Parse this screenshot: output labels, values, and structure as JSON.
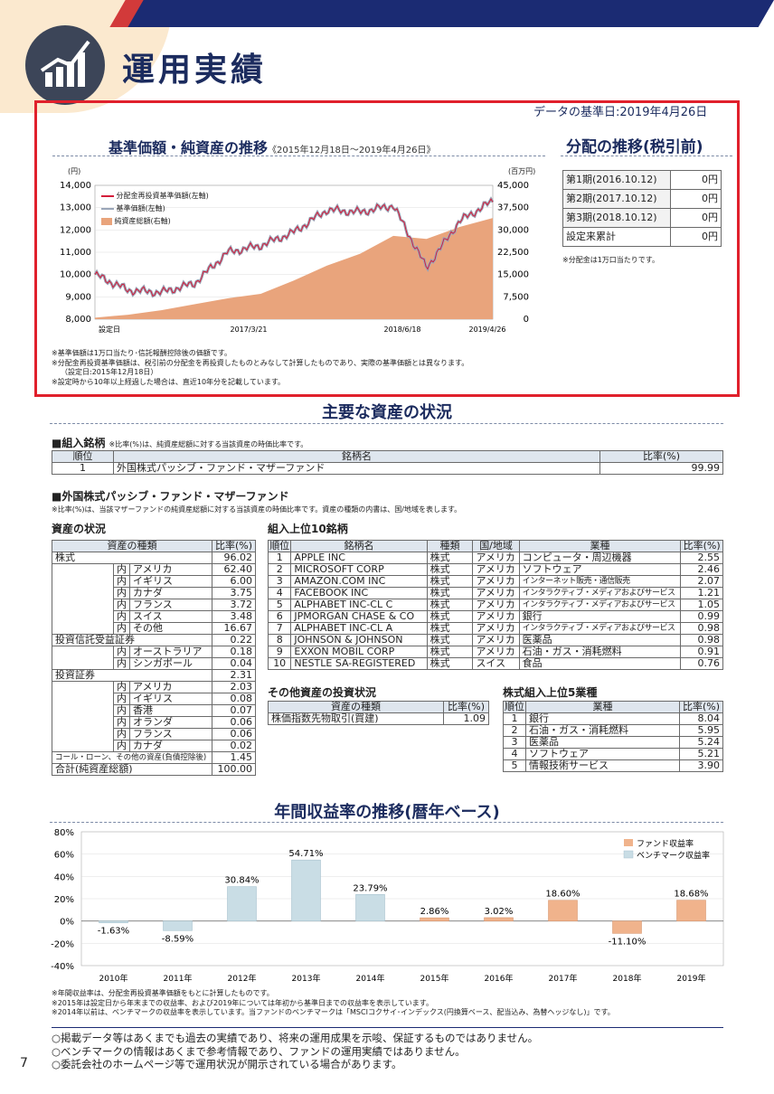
{
  "page": {
    "title": "運用実績",
    "number": "7",
    "date_note": "データの基準日:2019年4月26日"
  },
  "nav_chart": {
    "title": "基準価額・純資産の推移",
    "period": "《2015年12月18日～2019年4月26日》",
    "left_unit": "(円)",
    "right_unit": "(百万円)",
    "left_ticks": [
      "14,000",
      "13,000",
      "12,000",
      "11,000",
      "10,000",
      "9,000",
      "8,000"
    ],
    "right_ticks": [
      "45,000",
      "37,500",
      "30,000",
      "22,500",
      "15,000",
      "7,500",
      "0"
    ],
    "x_ticks": [
      "設定日",
      "2017/3/21",
      "2018/6/18",
      "2019/4/26"
    ],
    "legend": [
      "分配金再投資基準価額(左軸)",
      "基準価額(左軸)",
      "純資産総額(右軸)"
    ],
    "notes": [
      "※基準価額は1万口当たり･信託報酬控除後の価額です。",
      "※分配金再投資基準価額は、税引前の分配金を再投資したものとみなして計算したものであり、実際の基準価額とは異なります。",
      "（設定日:2015年12月18日）",
      "※設定時から10年以上経過した場合は、直近10年分を記載しています。"
    ]
  },
  "chart_data": [
    {
      "type": "line",
      "title": "基準価額・純資産の推移",
      "x": [
        "2015/12/18",
        "2016/2",
        "2016/6",
        "2016/10",
        "2017/1",
        "2017/3/21",
        "2017/9",
        "2018/1",
        "2018/6/18",
        "2018/10",
        "2018/12",
        "2019/2",
        "2019/4/26"
      ],
      "series": [
        {
          "name": "分配金再投資基準価額(左軸)",
          "values": [
            10000,
            9300,
            9200,
            9600,
            11000,
            11300,
            11900,
            12900,
            12800,
            13100,
            10300,
            12400,
            13300
          ]
        },
        {
          "name": "基準価額(左軸)",
          "values": [
            10000,
            9300,
            9200,
            9600,
            11000,
            11300,
            11900,
            12900,
            12800,
            13100,
            10300,
            12400,
            13300
          ]
        },
        {
          "name": "純資産総額(右軸)",
          "values": [
            500,
            1500,
            3000,
            5000,
            7000,
            8500,
            13000,
            18000,
            22000,
            28000,
            27000,
            31000,
            34000
          ]
        }
      ],
      "ylim": [
        8000,
        14000
      ],
      "y2lim": [
        0,
        45000
      ]
    },
    {
      "type": "bar",
      "title": "年間収益率の推移(暦年ベース)",
      "categories": [
        "2010年",
        "2011年",
        "2012年",
        "2013年",
        "2014年",
        "2015年",
        "2016年",
        "2017年",
        "2018年",
        "2019年"
      ],
      "series": [
        {
          "name": "ファンド収益率",
          "values": [
            null,
            null,
            null,
            null,
            null,
            2.86,
            3.02,
            18.6,
            -11.1,
            18.68
          ]
        },
        {
          "name": "ベンチマーク収益率",
          "values": [
            -1.63,
            -8.59,
            30.84,
            54.71,
            23.79,
            null,
            null,
            null,
            null,
            null
          ]
        }
      ],
      "labels": [
        "-1.63%",
        "-8.59%",
        "30.84%",
        "54.71%",
        "23.79%",
        "2.86%",
        "3.02%",
        "18.60%",
        "-11.10%",
        "18.68%"
      ],
      "yticks": [
        "80%",
        "60%",
        "40%",
        "20%",
        "0%",
        "-20%",
        "-40%"
      ],
      "ylim": [
        -40,
        80
      ]
    }
  ],
  "dist": {
    "title": "分配の推移(税引前)",
    "rows": [
      [
        "第1期(2016.10.12)",
        "0円"
      ],
      [
        "第2期(2017.10.12)",
        "0円"
      ],
      [
        "第3期(2018.10.12)",
        "0円"
      ],
      [
        "設定来累計",
        "0円"
      ]
    ],
    "note": "※分配金は1万口当たりです。"
  },
  "assets": {
    "title": "主要な資産の状況",
    "holdings_head": "■組入銘柄",
    "holdings_note": "※比率(%)は、純資産総額に対する当該資産の時価比率です。",
    "holdings_cols": [
      "順位",
      "銘柄名",
      "比率(%)"
    ],
    "holdings_row": [
      "1",
      "外国株式パッシブ・ファンド・マザーファンド",
      "99.99"
    ],
    "mf_head": "■外国株式パッシブ・ファンド・マザーファンド",
    "mf_note": "※比率(%)は、当該マザーファンドの純資産総額に対する当該資産の時価比率です。資産の種類の内書は、国/地域を表します。",
    "comp_head": "資産の状況",
    "comp_cols": [
      "資産の種類",
      "比率(%)"
    ],
    "top10_head": "組入上位10銘柄",
    "top10_cols": [
      "順位",
      "銘柄名",
      "種類",
      "国/地域",
      "業種",
      "比率(%)"
    ],
    "other_head": "その他資産の投資状況",
    "other_cols": [
      "資産の種類",
      "比率(%)"
    ],
    "other_row": [
      "株価指数先物取引(買建)",
      "1.09"
    ],
    "ind_head": "株式組入上位5業種",
    "ind_cols": [
      "順位",
      "業種",
      "比率(%)"
    ]
  },
  "returns": {
    "title": "年間収益率の推移(暦年ベース)",
    "legend": [
      "ファンド収益率",
      "ベンチマーク収益率"
    ],
    "notes": [
      "※年間収益率は、分配金再投資基準価額をもとに計算したものです。",
      "※2015年は設定日から年末までの収益率、および2019年については年初から基準日までの収益率を表示しています。",
      "※2014年以前は、ベンチマークの収益率を表示しています。当ファンドのベンチマークは「MSCIコクサイ･インデックス(円換算ベース、配当込み、為替ヘッジなし)」です。"
    ]
  },
  "footer": [
    "○掲載データ等はあくまでも過去の実績であり、将来の運用成果を示唆、保証するものではありません。",
    "○ベンチマークの情報はあくまで参考情報であり、ファンドの運用実績ではありません。",
    "○委託会社のホームページ等で運用状況が開示されている場合があります。"
  ]
}
